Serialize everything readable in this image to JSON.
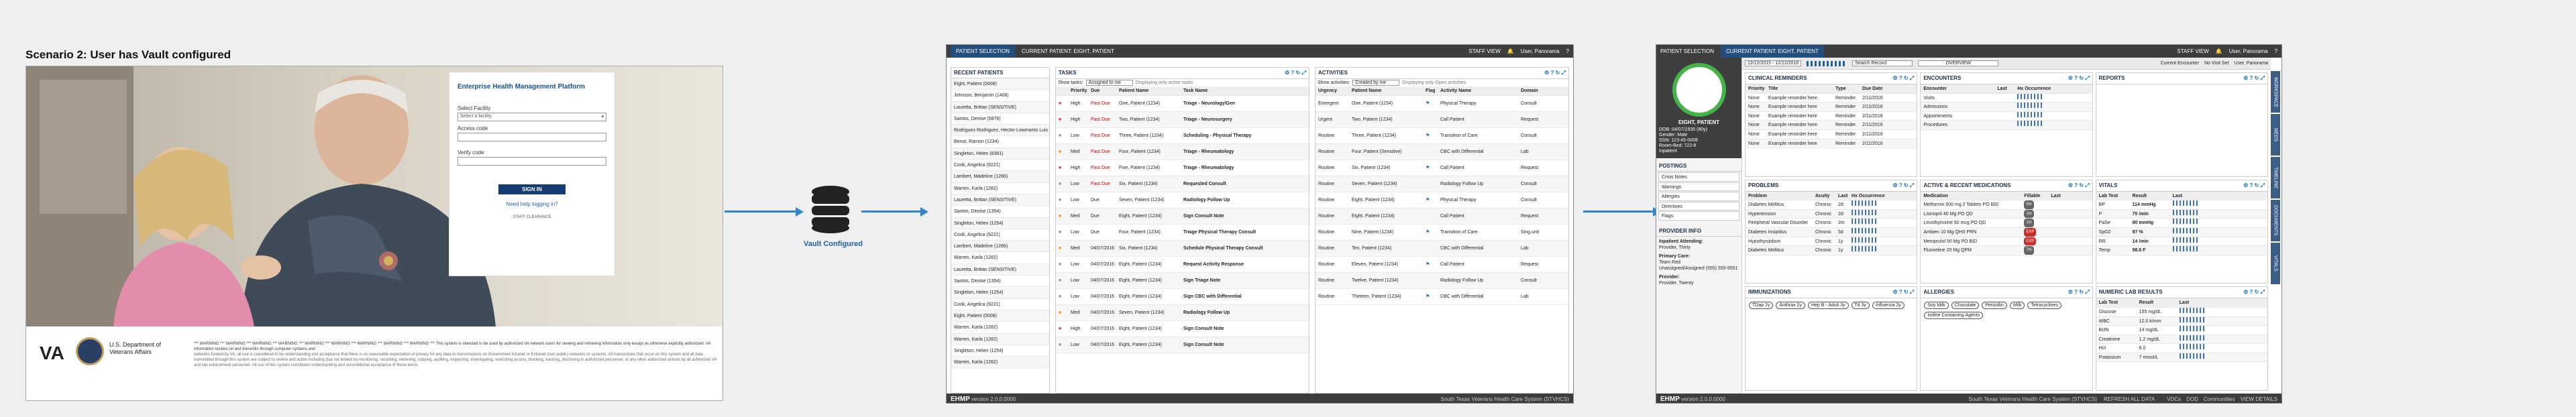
{
  "title": "Scenario 2: User has Vault configured",
  "vault_label": "Vault Configured",
  "login": {
    "panel_title": "Enterprise Health Management Platform",
    "facility_label": "Select Facility",
    "facility_value": "Select a facility",
    "access_label": "Access code",
    "verify_label": "Verify code",
    "sign_in": "SIGN IN",
    "help": "Need help logging in?",
    "small": "STAFF CLEARANCE",
    "va": "VA",
    "va_name": "U.S. Department of Veterans Affairs",
    "warning": "*** WARNING *** WARNING *** WARNING *** WARNING *** WARNING *** WARNING *** WARNING *** WARNING *** WARNING *** This system is intended to be used by authorized VA network users for viewing and retrieving information only except as otherwise explicitly authorized. VA information resides on and transmits through computer systems and",
    "paragraph": "networks funded by VA; all use is considered to be understanding and acceptance that there is no reasonable expectation of privacy for any data or transmissions on Government Intranet or Extranet (non-public) networks or systems. All transactions that occur on this system and all data transmitted through this system are subject to review and action including (but not limited to) monitoring, recording, retrieving, copying, auditing, inspecting, investigating, restricting access, blocking, tracking, disclosing to authorized personnel, or any other authorized actions by all authorized VA and law enforcement personnel. All use of this system constitutes understanding and unconditional acceptance of these terms."
  },
  "screen2": {
    "tab1": "PATIENT SELECTION",
    "tab2": "CURRENT PATIENT: EIGHT, PATIENT",
    "staff": "STAFF VIEW",
    "user": "User, Panorama",
    "recent_header": "RECENT PATIENTS",
    "recent": [
      "Eight, Patient (0008)",
      "Johnson, Benjamin (1408)",
      "Lauretta, Brittan (SENSITIVE)",
      "Santos, Denise (5876)",
      "Rodriguez-Rodriguez, Hector-Lowmanto Luis De Silva (2154)",
      "Benut, Ramon (1234)",
      "Singleton, Helen (8381)",
      "Cook, Angelica (9221)",
      "Lambert, Madeline (1286)",
      "Warren, Karla (1282)",
      "Lauretta, Brittan (SENSITIVE)",
      "Santos, Denise (1354)",
      "Singleton, Helen (1254)",
      "Cook, Angelica (9221)",
      "Lambert, Madeline (1286)",
      "Warren, Karla (1282)",
      "Lauretta, Brittan (SENSITIVE)",
      "Santos, Denise (1354)",
      "Singleton, Helen (1254)",
      "Cook, Angelica (9221)",
      "Eight, Patient (0008)",
      "Warren, Karla (1282)",
      "Warren, Karla (1282)",
      "Singleton, Helen (1254)",
      "Warren, Karla (1282)"
    ],
    "tasks_header": "TASKS",
    "tasks_show": "Show tasks:",
    "tasks_filter": "Assigned to me",
    "tasks_note": "Displaying only active tasks",
    "task_cols": [
      "",
      "Priority",
      "Due",
      "Patient Name",
      "Task Name"
    ],
    "tasks": [
      [
        "High",
        "Past Due",
        "One, Patient (1234)",
        "Triage - Neurology/Gen"
      ],
      [
        "High",
        "Past Due",
        "Two, Patient (1234)",
        "Triage - Neurosurgery"
      ],
      [
        "Low",
        "Past Due",
        "Three, Patient (1234)",
        "Scheduling - Physical Therapy"
      ],
      [
        "Med",
        "Past Due",
        "Four, Patient (1234)",
        "Triage - Rheumatology"
      ],
      [
        "High",
        "Past Due",
        "Five, Patient (1234)",
        "Triage - Rheumatology"
      ],
      [
        "Low",
        "Past Due",
        "Six, Patient (1234)",
        "Requested Consult"
      ],
      [
        "Low",
        "Due",
        "Seven, Patient (1234)",
        "Radiology Follow Up"
      ],
      [
        "Med",
        "Due",
        "Eight, Patient (1234)",
        "Sign Consult Note"
      ],
      [
        "Low",
        "Due",
        "Four, Patient (1234)",
        "Triage Physical Therapy Consult"
      ],
      [
        "Med",
        "04/07/2016",
        "Six, Patient (1234)",
        "Schedule Physical Therapy Consult"
      ],
      [
        "Low",
        "04/07/2016",
        "Eight, Patient (1234)",
        "Request Activity Response"
      ],
      [
        "Low",
        "04/07/2016",
        "Eight, Patient (1234)",
        "Sign Triage Note"
      ],
      [
        "Low",
        "04/07/2016",
        "Eight, Patient (1234)",
        "Sign CBC with Differential"
      ],
      [
        "Med",
        "04/07/2016",
        "Seven, Patient (1234)",
        "Radiology Follow Up"
      ],
      [
        "High",
        "04/07/2016",
        "Eight, Patient (1234)",
        "Sign Consult Note"
      ],
      [
        "Low",
        "04/07/2016",
        "Eight, Patient (1234)",
        "Sign Consult Note"
      ]
    ],
    "act_header": "ACTIVITIES",
    "act_show": "Show activities:",
    "act_filter": "Created by me",
    "act_note": "Displaying only Open activities",
    "act_cols": [
      "Urgency",
      "Patient Name",
      "Flag",
      "Activity Name",
      "Domain"
    ],
    "activities": [
      [
        "Emergent",
        "One, Patient (1234)",
        "Physical Therapy",
        "Consult"
      ],
      [
        "Urgent",
        "Two, Patient (1234)",
        "Call Patient",
        "Request"
      ],
      [
        "Routine",
        "Three, Patient (1234)",
        "Transition of Care",
        "Consult"
      ],
      [
        "Routine",
        "Four, Patient (Sensitive)",
        "CBC with Differential",
        "Lab"
      ],
      [
        "Routine",
        "Six, Patient (1234)",
        "Call Patient",
        "Request"
      ],
      [
        "Routine",
        "Seven, Patient (1234)",
        "Radiology Follow Up",
        "Consult"
      ],
      [
        "Routine",
        "Eight, Patient (1234)",
        "Physical Therapy",
        "Consult"
      ],
      [
        "Routine",
        "Eight, Patient (1234)",
        "Call Patient",
        "Request"
      ],
      [
        "Routine",
        "Nine, Patient (1234)",
        "Transition of Care",
        "Sing.unit"
      ],
      [
        "Routine",
        "Ten, Patient (1234)",
        "CBC with Differential",
        "Lab"
      ],
      [
        "Routine",
        "Eleven, Patient (1234)",
        "Call Patient",
        "Request"
      ],
      [
        "Routine",
        "Twelve, Patient (1234)",
        "Radiology Follow Up",
        "Consult"
      ],
      [
        "Routine",
        "Thirteen, Patient (1234)",
        "CBC with Differential",
        "Lab"
      ]
    ],
    "footer_logo": "EHMP",
    "version": "version 2.0.0.0000",
    "facility": "South Texas Veterans Health Care System (STVHCS)"
  },
  "screen3": {
    "tab1": "PATIENT SELECTION",
    "tab2": "CURRENT PATIENT: EIGHT, PATIENT",
    "staff": "STAFF VIEW",
    "user": "User, Panorama",
    "date_range": "12/12/2015 - 12/12/2016",
    "search": "Search Record",
    "overview": "OVERVIEW",
    "encounter": "Current Encounter",
    "visit_set": "No Visit Set",
    "provider_user": "User, Panorama",
    "patient_name": "EIGHT, PATIENT",
    "patient_info": [
      "DOB: 04/07/1935 (80y)",
      "Gender: Male",
      "SSN: 123-45-0008",
      "Room-Bed: 722-8",
      "Inpatient"
    ],
    "postings_h": "POSTINGS",
    "postings": [
      "Crisis Notes",
      "Warnings",
      "Allergies",
      "Directives",
      "Flags"
    ],
    "provider_h": "PROVIDER INFO",
    "inpatient": "Inpatient Attending:",
    "inpatient_name": "Provider, Thirty",
    "primary": "Primary Care:",
    "primary_team": "Team Red",
    "primary_phone": "Unassigned/Assigned (555) 555-5551",
    "primary_provider": "Provider:",
    "primary_provider_name": "Provider, Twenty",
    "reminders_h": "CLINICAL REMINDERS",
    "reminder_cols": [
      "Priority",
      "Title",
      "Type",
      "Due Date"
    ],
    "reminders": [
      [
        "None",
        "Example reminder here",
        "Reminder",
        "2/11/2016"
      ],
      [
        "None",
        "Example reminder here",
        "Reminder",
        "2/11/2016"
      ],
      [
        "None",
        "Example reminder here",
        "Reminder",
        "2/11/2016"
      ],
      [
        "None",
        "Example reminder here",
        "Reminder",
        "2/11/2016"
      ],
      [
        "None",
        "Example reminder here",
        "Reminder",
        "2/11/2016"
      ],
      [
        "None",
        "Example reminder here",
        "Reminder",
        "2/11/2016"
      ]
    ],
    "encounters_h": "ENCOUNTERS",
    "enc_cols": [
      "Encounter",
      "Last",
      "Hx Occurrence"
    ],
    "encounters": [
      "Visits",
      "Admissions",
      "Appointments",
      "Procedures"
    ],
    "reports_h": "REPORTS",
    "problems_h": "PROBLEMS",
    "prob_cols": [
      "Problem",
      "Acuity",
      "Last",
      "Hx Occurrence"
    ],
    "problems": [
      [
        "Diabetes Mellitus",
        "Chronic",
        "2d"
      ],
      [
        "Hypertension",
        "Chronic",
        "2d"
      ],
      [
        "Peripheral Vascular Disorder",
        "Chronic",
        "2m"
      ],
      [
        "Diabetes Insipidus",
        "Chronic",
        "5d"
      ],
      [
        "Hypothyroidism",
        "Chronic",
        "1y"
      ],
      [
        "Diabetes Mellitus",
        "Chronic",
        "1y"
      ]
    ],
    "meds_h": "ACTIVE & RECENT MEDICATIONS",
    "med_cols": [
      "Medication",
      "Fillable",
      "Last"
    ],
    "meds": [
      [
        "Metformin 500 mg 2 Tablets PO BID",
        "5m"
      ],
      [
        "Lisinopril 40 Mg PO QD",
        "1m"
      ],
      [
        "Levothyroxine 50 mcg PO QD",
        "1m"
      ],
      [
        "Ambien 10 Mg QHS PRN",
        "EXP"
      ],
      [
        "Metoprolol 50 Mg PO BID",
        "EXP"
      ],
      [
        "Fluoxetine 20 Mg QPM",
        "7m"
      ]
    ],
    "vitals_h": "VITALS",
    "vital_cols": [
      "Lab Test",
      "Result",
      "Last"
    ],
    "vitals": [
      [
        "BP",
        "114 mmHg"
      ],
      [
        "P",
        "70 /min"
      ],
      [
        "PaSe",
        "80 mmHg"
      ],
      [
        "SpO2",
        "97 %"
      ],
      [
        "RR",
        "14 /min"
      ],
      [
        "Temp",
        "98.6 F"
      ]
    ],
    "imm_h": "IMMUNIZATIONS",
    "imm": [
      "TDap 2y",
      "Anthrax 2y",
      "Hep B - Adult 3y",
      "Td 3y",
      "Influenza 2y"
    ],
    "allergies_h": "ALLERGIES",
    "allergies": [
      "Soy Milk",
      "Chocolate",
      "Penicillin",
      "Milk",
      "Tetracyclines",
      "Iodine Containing Agents"
    ],
    "labs_h": "NUMERIC LAB RESULTS",
    "lab_cols": [
      "Lab Test",
      "Result",
      "Last"
    ],
    "labs": [
      [
        "Glucose",
        "155 mg/dL"
      ],
      [
        "WBC",
        "12.0 k/mm"
      ],
      [
        "BUN",
        "14 mg/dL"
      ],
      [
        "Creatinine",
        "1.2 mg/dL"
      ],
      [
        "Hct",
        "6.0"
      ],
      [
        "Potassium",
        "7 mmol/L"
      ]
    ],
    "sidetabs": [
      "WORKSPACE",
      "MEDS",
      "TIMELINE",
      "DOCUMENTS",
      "VITALS"
    ],
    "footer_logo": "EHMP",
    "version": "version 2.0.0.0000",
    "facility": "South Texas Veterans Health Care System (STVHCS)",
    "refresh": "REFRESH ALL DATA",
    "status": [
      "VDCs",
      "DOD",
      "Communities",
      "VIEW DETAILS"
    ]
  }
}
